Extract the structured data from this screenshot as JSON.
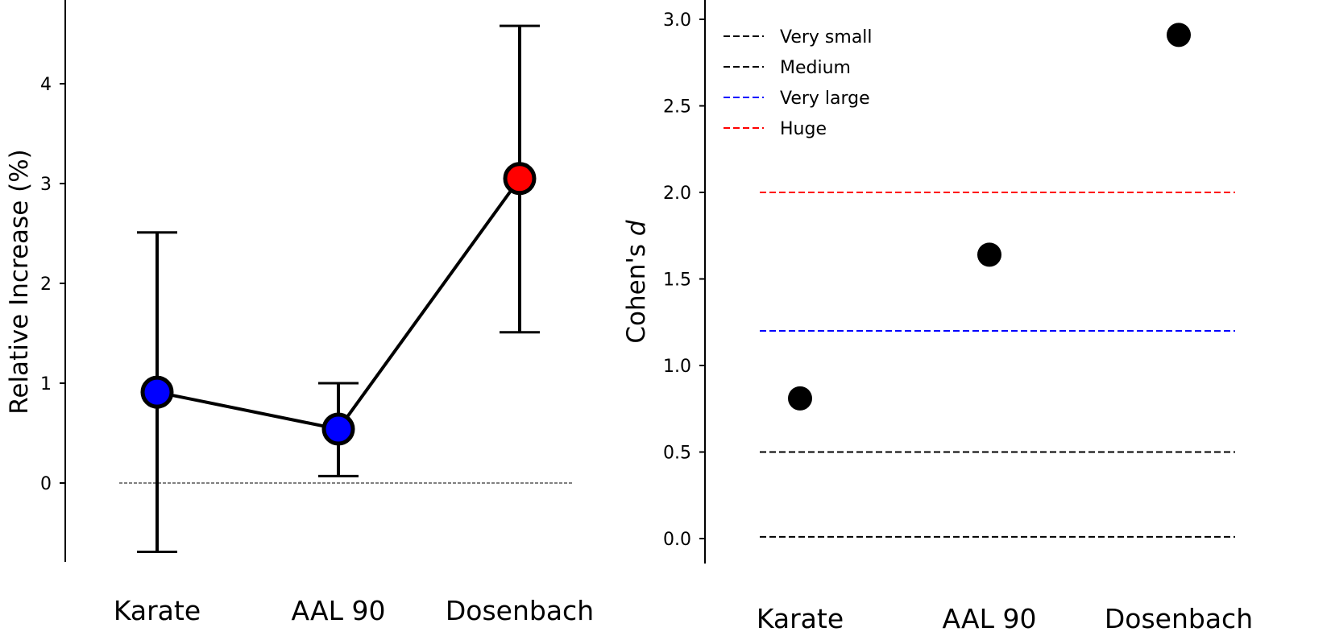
{
  "chart_data": [
    {
      "type": "line",
      "title": "",
      "xlabel": "",
      "ylabel": "Relative Increase (%)",
      "categories": [
        "Karate",
        "AAL 90",
        "Dosenbach"
      ],
      "values": [
        0.91,
        0.54,
        3.05
      ],
      "error_low": [
        -0.69,
        0.07,
        1.51
      ],
      "error_high": [
        2.51,
        1.0,
        4.58
      ],
      "point_colors": [
        "#0000ff",
        "#0000ff",
        "#ff0000"
      ],
      "yticks": [
        0,
        1,
        2,
        3,
        4
      ],
      "ylim": [
        -0.95,
        4.9
      ],
      "reference_line": 0,
      "grid": false
    },
    {
      "type": "scatter",
      "title": "",
      "xlabel": "",
      "ylabel": "Cohen's d",
      "categories": [
        "Karate",
        "AAL 90",
        "Dosenbach"
      ],
      "values": [
        0.81,
        1.64,
        2.91
      ],
      "yticks": [
        "0.0",
        "0.5",
        "1.0",
        "1.5",
        "2.0",
        "2.5",
        "3.0"
      ],
      "ylim": [
        -0.15,
        3.1
      ],
      "thresholds": [
        {
          "name": "Very small",
          "value": 0.01,
          "color": "#000000"
        },
        {
          "name": "Medium",
          "value": 0.5,
          "color": "#000000"
        },
        {
          "name": "Very large",
          "value": 1.2,
          "color": "#0000ff"
        },
        {
          "name": "Huge",
          "value": 2.0,
          "color": "#ff0000"
        }
      ],
      "legend": "top-left",
      "grid": false
    }
  ]
}
